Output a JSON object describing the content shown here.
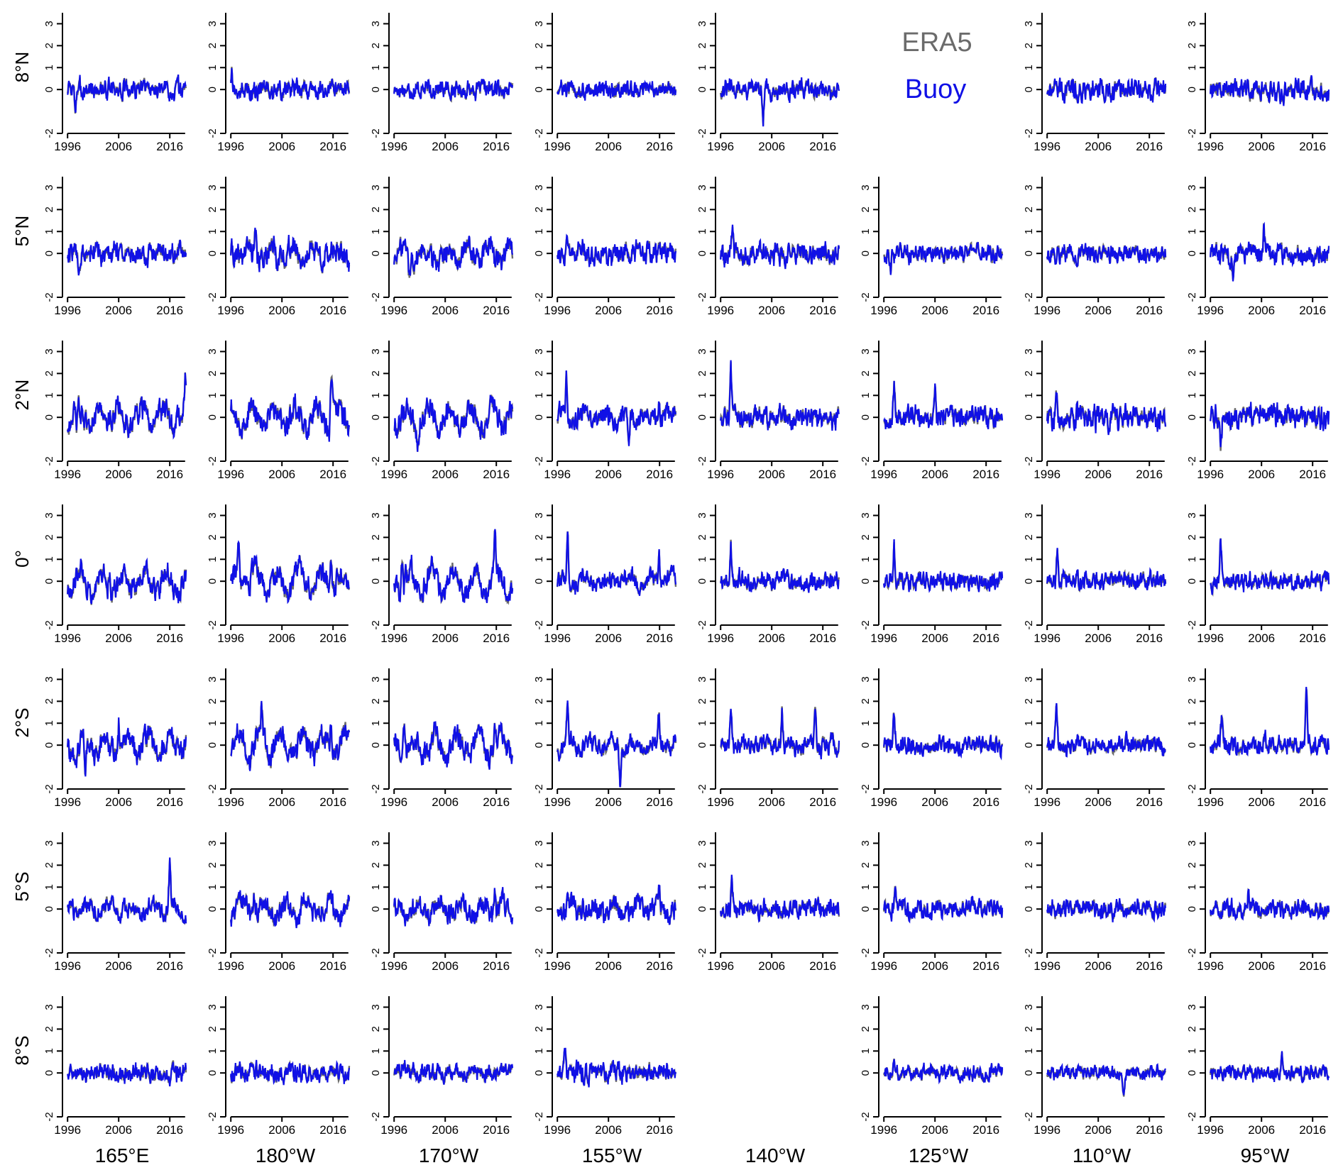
{
  "chart_data": {
    "type": "line",
    "rows": [
      "8°N",
      "5°N",
      "2°N",
      "0°",
      "2°S",
      "5°S",
      "8°S"
    ],
    "cols": [
      "165°E",
      "180°W",
      "170°W",
      "155°W",
      "140°W",
      "125°W",
      "110°W",
      "95°W"
    ],
    "legend": {
      "entries": [
        "ERA5",
        "Buoy"
      ],
      "placement": "top, panel 8°N-125°W"
    },
    "x_ticks": [
      "1996",
      "2006",
      "2016"
    ],
    "xlim": [
      1995,
      2020
    ],
    "y_ticks": [
      "-2",
      "0",
      "1",
      "2",
      "3"
    ],
    "ylim": [
      -2,
      3.5
    ],
    "series_colors": {
      "ERA5": "#6b6b6b",
      "Buoy": "#1010e6"
    },
    "empty_panels": [
      [
        0,
        5
      ],
      [
        6,
        4
      ]
    ],
    "panel_profiles": [
      [
        {
          "amp": 0.32,
          "seas": 0.0,
          "spikes": [
            [
              1997.5,
              -0.9
            ]
          ]
        },
        {
          "amp": 0.3,
          "seas": 0.0,
          "spikes": [
            [
              1996.2,
              1.2
            ]
          ]
        },
        {
          "amp": 0.28,
          "seas": 0.0,
          "spikes": []
        },
        {
          "amp": 0.28,
          "seas": 0.0,
          "spikes": []
        },
        {
          "amp": 0.3,
          "seas": 0.0,
          "spikes": [
            [
              2004.3,
              -1.7
            ]
          ]
        },
        null,
        {
          "amp": 0.35,
          "seas": 0.0,
          "spikes": []
        },
        {
          "amp": 0.35,
          "seas": 0.0,
          "spikes": []
        }
      ],
      [
        {
          "amp": 0.35,
          "seas": 0.1,
          "spikes": [
            [
              1998.3,
              -1.0
            ]
          ]
        },
        {
          "amp": 0.4,
          "seas": 0.3,
          "spikes": [
            [
              2000.8,
              1.0
            ]
          ]
        },
        {
          "amp": 0.4,
          "seas": 0.3,
          "spikes": [
            [
              1999.0,
              -1.3
            ]
          ]
        },
        {
          "amp": 0.35,
          "seas": 0.1,
          "spikes": [
            [
              1997.9,
              1.2
            ]
          ]
        },
        {
          "amp": 0.35,
          "seas": 0.1,
          "spikes": [
            [
              1998.3,
              1.3
            ]
          ]
        },
        {
          "amp": 0.3,
          "seas": 0.0,
          "spikes": [
            [
              1997.3,
              -1.0
            ]
          ]
        },
        {
          "amp": 0.3,
          "seas": 0.0,
          "spikes": []
        },
        {
          "amp": 0.35,
          "seas": 0.0,
          "spikes": [
            [
              2006.5,
              1.2
            ],
            [
              2000.5,
              -1.1
            ]
          ]
        }
      ],
      [
        {
          "amp": 0.4,
          "seas": 0.4,
          "spikes": [
            [
              2019.0,
              1.6
            ],
            [
              1997.8,
              -0.9
            ]
          ]
        },
        {
          "amp": 0.4,
          "seas": 0.5,
          "spikes": [
            [
              2015.7,
              2.3
            ]
          ]
        },
        {
          "amp": 0.4,
          "seas": 0.5,
          "spikes": [
            [
              2000.6,
              -0.8
            ]
          ]
        },
        {
          "amp": 0.35,
          "seas": 0.2,
          "spikes": [
            [
              1997.8,
              1.8
            ],
            [
              2010.0,
              -1.6
            ],
            [
              2015.9,
              1.4
            ]
          ]
        },
        {
          "amp": 0.35,
          "seas": 0.1,
          "spikes": [
            [
              1998.0,
              2.0
            ]
          ]
        },
        {
          "amp": 0.35,
          "seas": 0.0,
          "spikes": [
            [
              1998.0,
              1.5
            ],
            [
              2006.0,
              1.7
            ]
          ]
        },
        {
          "amp": 0.4,
          "seas": 0.0,
          "spikes": [
            [
              1997.8,
              1.2
            ]
          ]
        },
        {
          "amp": 0.4,
          "seas": 0.0,
          "spikes": [
            [
              1998.0,
              -1.5
            ]
          ]
        }
      ],
      [
        {
          "amp": 0.4,
          "seas": 0.5,
          "spikes": []
        },
        {
          "amp": 0.4,
          "seas": 0.5,
          "spikes": [
            [
              1997.5,
              1.5
            ],
            [
              2015.6,
              1.5
            ]
          ]
        },
        {
          "amp": 0.4,
          "seas": 0.5,
          "spikes": [
            [
              1997.6,
              1.6
            ],
            [
              2015.7,
              1.6
            ]
          ]
        },
        {
          "amp": 0.3,
          "seas": 0.2,
          "spikes": [
            [
              1998.0,
              1.9
            ],
            [
              2015.9,
              1.4
            ]
          ]
        },
        {
          "amp": 0.3,
          "seas": 0.1,
          "spikes": [
            [
              1998.0,
              2.1
            ]
          ]
        },
        {
          "amp": 0.3,
          "seas": 0.0,
          "spikes": [
            [
              1998.0,
              1.9
            ]
          ]
        },
        {
          "amp": 0.3,
          "seas": 0.0,
          "spikes": [
            [
              1998.0,
              1.7
            ]
          ]
        },
        {
          "amp": 0.3,
          "seas": 0.0,
          "spikes": [
            [
              1998.0,
              2.2
            ]
          ]
        }
      ],
      [
        {
          "amp": 0.4,
          "seas": 0.5,
          "spikes": [
            [
              1999.5,
              -1.6
            ],
            [
              2006.0,
              1.4
            ]
          ]
        },
        {
          "amp": 0.4,
          "seas": 0.5,
          "spikes": [
            [
              2002.0,
              1.4
            ],
            [
              2015.6,
              1.0
            ]
          ]
        },
        {
          "amp": 0.4,
          "seas": 0.5,
          "spikes": [
            [
              1998.0,
              1.3
            ],
            [
              2015.7,
              1.5
            ]
          ]
        },
        {
          "amp": 0.3,
          "seas": 0.2,
          "spikes": [
            [
              1998.0,
              1.6
            ],
            [
              2008.3,
              -1.8
            ],
            [
              2015.9,
              1.6
            ]
          ]
        },
        {
          "amp": 0.3,
          "seas": 0.1,
          "spikes": [
            [
              1998.0,
              1.9
            ],
            [
              2008.0,
              1.6
            ],
            [
              2014.5,
              1.6
            ]
          ]
        },
        {
          "amp": 0.3,
          "seas": 0.0,
          "spikes": [
            [
              1998.0,
              1.4
            ]
          ]
        },
        {
          "amp": 0.3,
          "seas": 0.0,
          "spikes": [
            [
              1997.8,
              1.9
            ]
          ]
        },
        {
          "amp": 0.3,
          "seas": 0.0,
          "spikes": [
            [
              1998.2,
              1.5
            ],
            [
              2014.8,
              3.1
            ]
          ]
        }
      ],
      [
        {
          "amp": 0.3,
          "seas": 0.2,
          "spikes": [
            [
              2016.0,
              2.4
            ]
          ]
        },
        {
          "amp": 0.35,
          "seas": 0.4,
          "spikes": [
            [
              2000.5,
              1.0
            ]
          ]
        },
        {
          "amp": 0.35,
          "seas": 0.3,
          "spikes": [
            [
              2015.7,
              1.3
            ]
          ]
        },
        {
          "amp": 0.35,
          "seas": 0.2,
          "spikes": [
            [
              1998.0,
              1.3
            ],
            [
              2015.9,
              1.2
            ]
          ]
        },
        {
          "amp": 0.3,
          "seas": 0.1,
          "spikes": [
            [
              1998.2,
              1.6
            ]
          ]
        },
        {
          "amp": 0.3,
          "seas": 0.0,
          "spikes": [
            [
              1998.2,
              1.0
            ]
          ]
        },
        {
          "amp": 0.3,
          "seas": 0.0,
          "spikes": []
        },
        {
          "amp": 0.3,
          "seas": 0.0,
          "spikes": [
            [
              2003.5,
              1.1
            ]
          ]
        }
      ],
      [
        {
          "amp": 0.3,
          "seas": 0.0,
          "spikes": []
        },
        {
          "amp": 0.3,
          "seas": 0.0,
          "spikes": []
        },
        {
          "amp": 0.3,
          "seas": 0.0,
          "spikes": []
        },
        {
          "amp": 0.35,
          "seas": 0.0,
          "spikes": [
            [
              1997.5,
              1.1
            ]
          ]
        },
        null,
        {
          "amp": 0.25,
          "seas": 0.0,
          "spikes": [
            [
              1998.0,
              0.8
            ]
          ]
        },
        {
          "amp": 0.25,
          "seas": 0.0,
          "spikes": [
            [
              2011.0,
              -1.1
            ]
          ]
        },
        {
          "amp": 0.25,
          "seas": 0.0,
          "spikes": [
            [
              2010.0,
              0.8
            ]
          ]
        }
      ]
    ]
  }
}
